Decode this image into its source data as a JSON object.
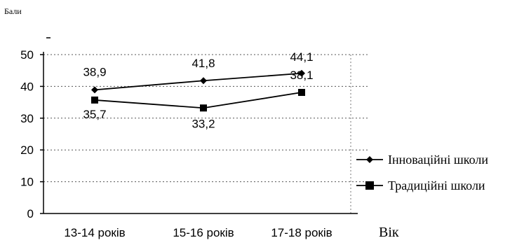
{
  "chart_data": {
    "type": "line",
    "ylabel": "Бали",
    "xlabel": "Вік",
    "categories": [
      "13-14 років",
      "15-16 років",
      "17-18 років"
    ],
    "ylim": [
      0,
      50
    ],
    "yticks": [
      0,
      10,
      20,
      30,
      40,
      50
    ],
    "grid": true,
    "legend": "right",
    "series": [
      {
        "name": "Інноваційні школи",
        "values": [
          38.9,
          41.8,
          44.1
        ],
        "labels": [
          "38,9",
          "41,8",
          "44,1"
        ],
        "marker": "diamond",
        "color": "#000000"
      },
      {
        "name": "Традиційні школи",
        "values": [
          35.7,
          33.2,
          38.1
        ],
        "labels": [
          "35,7",
          "33,2",
          "38,1"
        ],
        "marker": "square",
        "color": "#000000"
      }
    ]
  }
}
